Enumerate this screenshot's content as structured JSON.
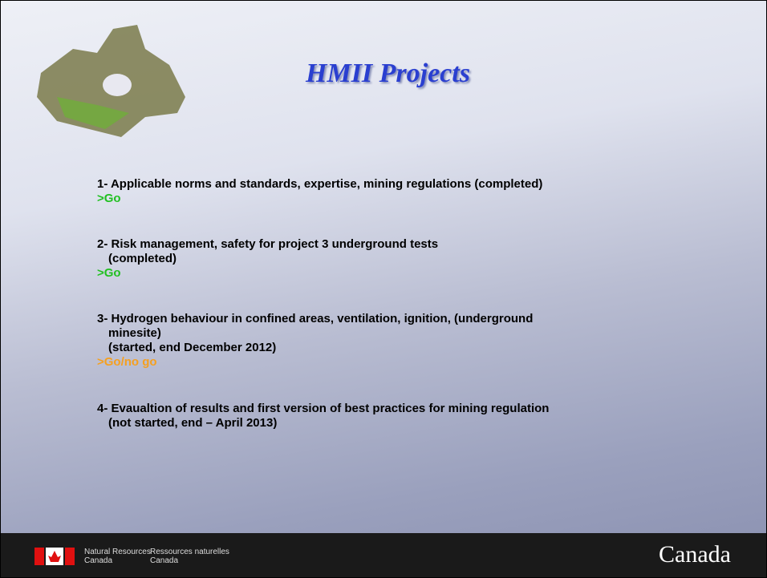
{
  "title": "HMII Projects",
  "items": [
    {
      "lines": [
        "1- Applicable norms and standards, expertise, mining regulations (completed)"
      ],
      "status": ">Go"
    },
    {
      "lines": [
        "2- Risk management, safety for project 3 underground tests",
        "(completed)"
      ],
      "status": ">Go"
    },
    {
      "lines": [
        "3- Hydrogen behaviour in confined areas, ventilation, ignition, (underground",
        "minesite)",
        "(started, end December 2012)"
      ],
      "status": ">Go/no go"
    },
    {
      "lines": [
        "4- Evaualtion of results and first version of best practices for mining regulation",
        "(not started, end – April 2013)"
      ]
    }
  ],
  "footer": {
    "en": [
      "Natural Resources",
      "Canada"
    ],
    "fr": [
      "Ressources naturelles",
      "Canada"
    ],
    "wordmark": "Canada"
  }
}
